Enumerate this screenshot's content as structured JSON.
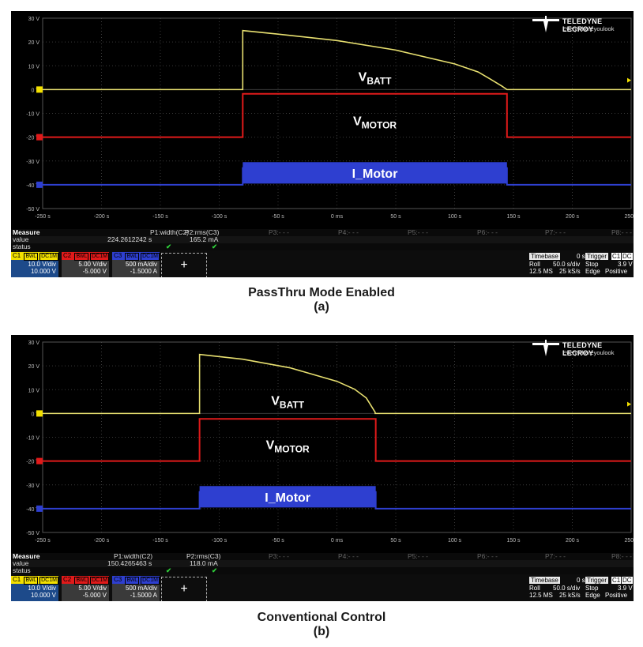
{
  "captions": [
    {
      "title": "PassThru Mode Enabled",
      "sub": "(a)"
    },
    {
      "title": "Conventional Control",
      "sub": "(b)"
    }
  ],
  "logo": {
    "name": "TELEDYNE LECROY",
    "tagline": "Everywhereyoulook",
    "icon": "teledyne-lecroy-logo-icon"
  },
  "axes": {
    "y_ticks": [
      "30 V",
      "20 V",
      "10 V",
      "0 V",
      "-10 V",
      "-20 V",
      "-30 V",
      "-40 V",
      "-50 V"
    ],
    "y_values": [
      30,
      20,
      10,
      0,
      -10,
      -20,
      -30,
      -40,
      -50
    ],
    "x_ticks": [
      "-250 s",
      "-200 s",
      "-150 s",
      "-100 s",
      "-50 s",
      "0 ms",
      "50 s",
      "100 s",
      "150 s",
      "200 s",
      "250 s"
    ],
    "x_values": [
      -250,
      -200,
      -150,
      -100,
      -50,
      0,
      50,
      100,
      150,
      200,
      250
    ]
  },
  "labels": {
    "vbatt_main": "V",
    "vbatt_sub": "BATT",
    "vmotor_main": "V",
    "vmotor_sub": "MOTOR",
    "imotor": "I_Motor"
  },
  "colors": {
    "c1": "#f3e000",
    "c2": "#e01a1a",
    "c3": "#2e3fd0",
    "grid": "#3a3a3a",
    "trace_c1": "#e8e070"
  },
  "screens": [
    {
      "measure": {
        "label": "Measure",
        "value_label": "value",
        "status_label": "status",
        "p1_name": "P1:width(C2)",
        "p1_value": "224.2612242 s",
        "p2_name": "P2:rms(C3)",
        "p2_value": "165.2 mA",
        "others": [
          "P3:- - -",
          "P4:- - -",
          "P5:- - -",
          "P6:- - -",
          "P7:- - -",
          "P8:- - -"
        ]
      },
      "channels": [
        {
          "name": "C1",
          "tags": [
            "BwL",
            "DC1M"
          ],
          "vdiv": "10.0 V/div",
          "offset": "10.000 V"
        },
        {
          "name": "C2",
          "tags": [
            "BwL",
            "DC1M"
          ],
          "vdiv": "5.00 V/div",
          "offset": "-5.000 V"
        },
        {
          "name": "C3",
          "tags": [
            "BwL",
            "DC1M"
          ],
          "vdiv": "500 mA/div",
          "offset": "-1.5000 A"
        }
      ],
      "add_label": "+",
      "timebase": {
        "head": "Timebase",
        "delay": "0 s",
        "mode": "Roll",
        "sdiv": "50.0 s/div",
        "ms": "12.5 MS",
        "rate": "25 kS/s"
      },
      "trigger": {
        "head": "Trigger",
        "ch": "C1",
        "coupling": "DC",
        "state": "Stop",
        "level": "3.9 V",
        "type": "Edge",
        "slope": "Positive"
      },
      "chart_data": {
        "type": "line",
        "xlabel": "",
        "ylabel": "",
        "xlim": [
          -250,
          250
        ],
        "ylim": [
          -50,
          30
        ],
        "series": [
          {
            "name": "VBATT",
            "x": [
              -250,
              -80.0,
              -80.0,
              -50,
              0,
              50,
              100,
              120,
              130,
              140,
              144.5,
              144.5,
              250
            ],
            "y": [
              0,
              0,
              24.8,
              23.3,
              20.6,
              16.6,
              10.8,
              7.4,
              4.5,
              1.5,
              0,
              0,
              0
            ]
          },
          {
            "name": "VMOTOR",
            "x": [
              -250,
              -80.0,
              -80.0,
              144.5,
              144.5,
              250
            ],
            "y": [
              -20,
              -20,
              -1.8,
              -1.8,
              -20,
              -20
            ]
          },
          {
            "name": "I_Motor",
            "x": [
              -250,
              -80.0,
              -80.0,
              144.5,
              144.5,
              250
            ],
            "y": [
              -40,
              -40,
              -33,
              -33,
              -40,
              -40
            ]
          }
        ]
      }
    },
    {
      "measure": {
        "label": "Measure",
        "value_label": "value",
        "status_label": "status",
        "p1_name": "P1:width(C2)",
        "p1_value": "150.4265463 s",
        "p2_name": "P2:rms(C3)",
        "p2_value": "118.0 mA",
        "others": [
          "P3:- - -",
          "P4:- - -",
          "P5:- - -",
          "P6:- - -",
          "P7:- - -",
          "P8:- - -"
        ]
      },
      "channels": [
        {
          "name": "C1",
          "tags": [
            "BwL",
            "DC1M"
          ],
          "vdiv": "10.0 V/div",
          "offset": "10.000 V"
        },
        {
          "name": "C2",
          "tags": [
            "BwL",
            "DC1M"
          ],
          "vdiv": "5.00 V/div",
          "offset": "-5.000 V"
        },
        {
          "name": "C3",
          "tags": [
            "BwL",
            "DC1M"
          ],
          "vdiv": "500 mA/div",
          "offset": "-1.5000 A"
        }
      ],
      "add_label": "+",
      "timebase": {
        "head": "Timebase",
        "delay": "0 s",
        "mode": "Roll",
        "sdiv": "50.0 s/div",
        "ms": "12.5 MS",
        "rate": "25 kS/s"
      },
      "trigger": {
        "head": "Trigger",
        "ch": "C1",
        "coupling": "DC",
        "state": "Stop",
        "level": "3.9 V",
        "type": "Edge",
        "slope": "Positive"
      },
      "chart_data": {
        "type": "line",
        "xlabel": "",
        "ylabel": "",
        "xlim": [
          -250,
          250
        ],
        "ylim": [
          -50,
          30
        ],
        "series": [
          {
            "name": "VBATT",
            "x": [
              -250,
              -116.7,
              -116.7,
              -80,
              -40,
              0,
              15,
              25,
              32.5,
              32.5,
              250
            ],
            "y": [
              0,
              0,
              24.8,
              22.8,
              19.2,
              13.5,
              10.2,
              6.5,
              0.5,
              0,
              0
            ]
          },
          {
            "name": "VMOTOR",
            "x": [
              -250,
              -116.7,
              -116.7,
              33.0,
              33.0,
              250
            ],
            "y": [
              -20,
              -20,
              -2.3,
              -2.3,
              -20,
              -20
            ]
          },
          {
            "name": "I_Motor",
            "x": [
              -250,
              -116.7,
              -116.7,
              33.0,
              33.0,
              250
            ],
            "y": [
              -40,
              -40,
              -33,
              -33,
              -40,
              -40
            ]
          }
        ]
      }
    }
  ]
}
